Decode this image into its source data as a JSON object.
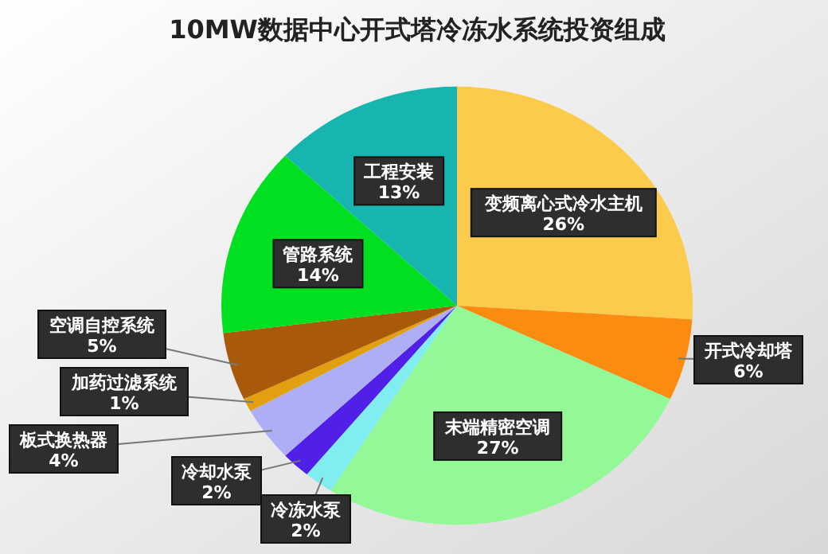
{
  "chart_data": {
    "type": "pie",
    "title": "10MW数据中心开式塔冷冻水系统投资组成",
    "categories": [
      "变频离心式冷水主机",
      "开式冷却塔",
      "末端精密空调",
      "冷冻水泵",
      "冷却水泵",
      "板式换热器",
      "加药过滤系统",
      "空调自控系统",
      "管路系统",
      "工程安装"
    ],
    "values": [
      26,
      6,
      27,
      2,
      2,
      4,
      1,
      5,
      14,
      13
    ],
    "value_labels": [
      "26%",
      "6%",
      "27%",
      "2%",
      "2%",
      "4%",
      "1%",
      "5%",
      "14%",
      "13%"
    ],
    "colors": [
      "#fdcb4c",
      "#fb8c10",
      "#93f996",
      "#80eef0",
      "#5020e8",
      "#aeaef6",
      "#e0a010",
      "#a85a0a",
      "#00e020",
      "#18b4b0"
    ]
  }
}
